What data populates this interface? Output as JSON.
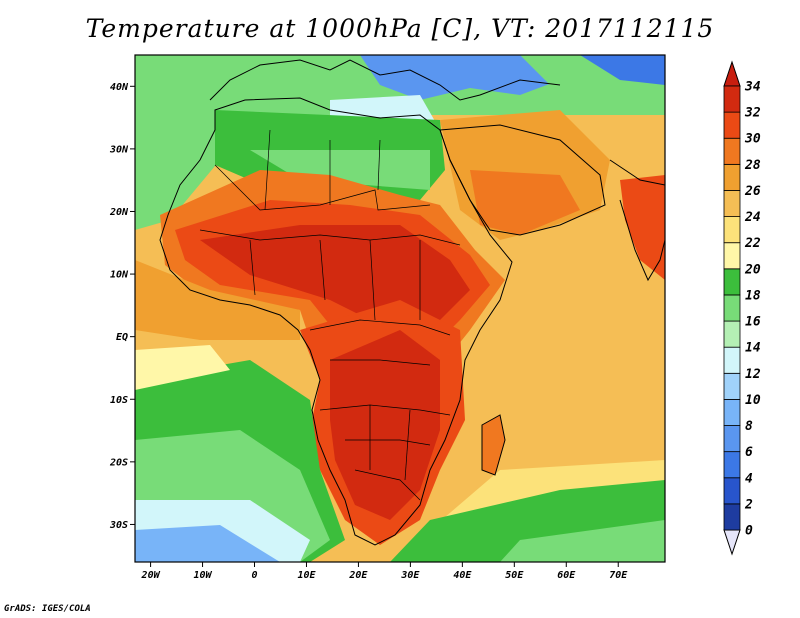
{
  "title": "Temperature at 1000hPa [C], VT: 2017112115",
  "credit": "GrADS: IGES/COLA",
  "map": {
    "lon_range": [
      -23,
      79
    ],
    "lat_range": [
      -36,
      45
    ],
    "x_ticks": [
      {
        "lon": -20,
        "label": "20W"
      },
      {
        "lon": -10,
        "label": "10W"
      },
      {
        "lon": 0,
        "label": "0"
      },
      {
        "lon": 10,
        "label": "10E"
      },
      {
        "lon": 20,
        "label": "20E"
      },
      {
        "lon": 30,
        "label": "30E"
      },
      {
        "lon": 40,
        "label": "40E"
      },
      {
        "lon": 50,
        "label": "50E"
      },
      {
        "lon": 60,
        "label": "60E"
      },
      {
        "lon": 70,
        "label": "70E"
      }
    ],
    "y_ticks": [
      {
        "lat": 40,
        "label": "40N"
      },
      {
        "lat": 30,
        "label": "30N"
      },
      {
        "lat": 20,
        "label": "20N"
      },
      {
        "lat": 10,
        "label": "10N"
      },
      {
        "lat": 0,
        "label": "EQ"
      },
      {
        "lat": -10,
        "label": "10S"
      },
      {
        "lat": -20,
        "label": "20S"
      },
      {
        "lat": -30,
        "label": "30S"
      }
    ]
  },
  "colorbar": {
    "labels": [
      "0",
      "2",
      "4",
      "6",
      "8",
      "10",
      "12",
      "14",
      "16",
      "18",
      "20",
      "22",
      "24",
      "26",
      "28",
      "30",
      "32",
      "34"
    ],
    "colors": [
      "#1e3ca0",
      "#2855cc",
      "#3c78e6",
      "#5a96f0",
      "#78b4f8",
      "#a0d2fa",
      "#d2f6fa",
      "#b4f0b4",
      "#78dc78",
      "#3cbe3c",
      "#fff7a8",
      "#fce27a",
      "#f5be55",
      "#f0a030",
      "#f07820",
      "#eb4a15",
      "#d22a10"
    ],
    "under_color": "#e6e6fa",
    "over_color": "#c81e0f"
  }
}
